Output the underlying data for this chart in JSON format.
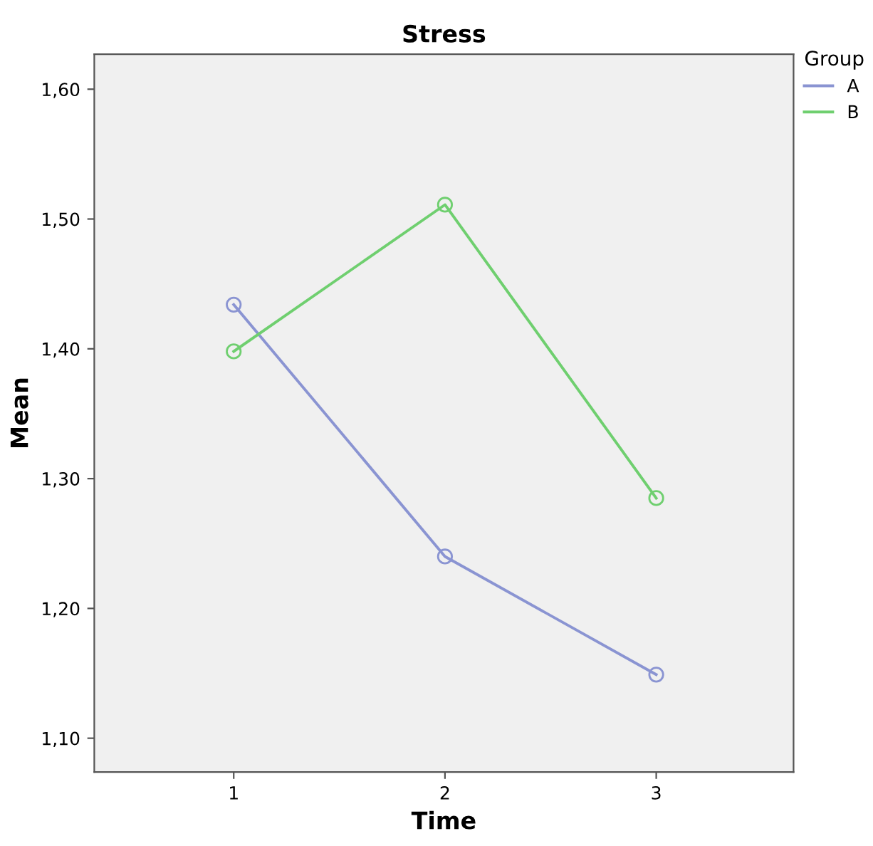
{
  "chart_data": {
    "type": "line",
    "title": "Stress",
    "xlabel": "Time",
    "ylabel": "Mean",
    "legend_title": "Group",
    "categories": [
      "1",
      "2",
      "3"
    ],
    "series": [
      {
        "name": "A",
        "color": "#8a94d2",
        "values": [
          1.434,
          1.24,
          1.149
        ]
      },
      {
        "name": "B",
        "color": "#6fcf6f",
        "values": [
          1.398,
          1.511,
          1.285
        ]
      }
    ],
    "ylim": [
      1.074,
      1.627
    ],
    "yticks": [
      {
        "value": 1.1,
        "label": "1,10"
      },
      {
        "value": 1.2,
        "label": "1,20"
      },
      {
        "value": 1.3,
        "label": "1,30"
      },
      {
        "value": 1.4,
        "label": "1,40"
      },
      {
        "value": 1.5,
        "label": "1,50"
      },
      {
        "value": 1.6,
        "label": "1,60"
      }
    ],
    "marker": "circle",
    "line_style": "solid",
    "legend": "top right",
    "grid": false
  }
}
